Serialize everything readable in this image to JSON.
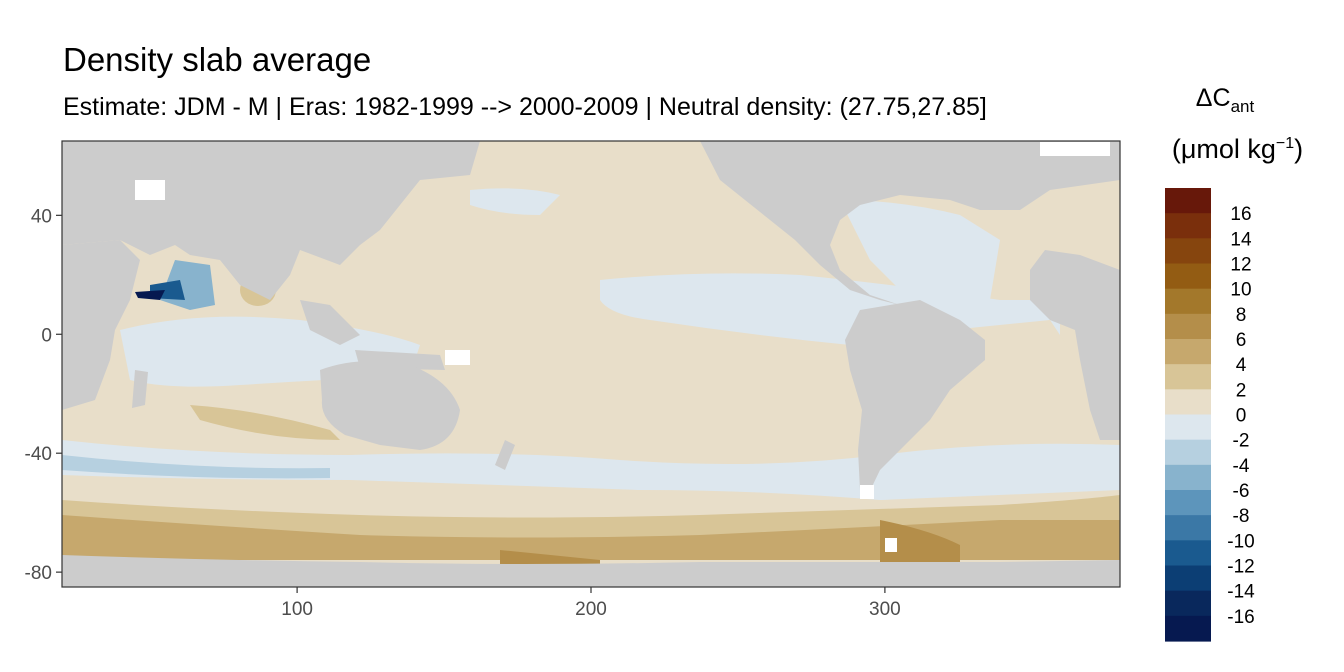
{
  "chart_data": {
    "type": "heatmap",
    "title": "Density slab average",
    "subtitle": "Estimate: JDM - M | Eras: 1982-1999 --> 2000-2009 | Neutral density: (27.75,27.85]",
    "legend": {
      "title_main": "ΔC",
      "title_sub": "ant",
      "unit_base": "(μmol kg",
      "unit_sup": "−1",
      "unit_close": ")",
      "placement": "right",
      "labels": [
        "16",
        "14",
        "12",
        "10",
        "8",
        "6",
        "4",
        "2",
        "0",
        "-2",
        "-4",
        "-6",
        "-8",
        "-10",
        "-12",
        "-14",
        "-16"
      ],
      "colors": [
        "#67180a",
        "#7a2f0c",
        "#86450e",
        "#935c13",
        "#a3782b",
        "#b48e4a",
        "#c6a86d",
        "#d8c597",
        "#e8dec9",
        "#dde7ee",
        "#b6d0e0",
        "#88b3cd",
        "#5d95bb",
        "#3b78a6",
        "#1a5a8f",
        "#0c3e74",
        "#09285c",
        "#061950"
      ]
    },
    "x_axis": {
      "ticks": [
        100,
        200,
        300
      ],
      "tick_labels": [
        "100",
        "200",
        "300"
      ],
      "range": [
        20,
        380
      ]
    },
    "y_axis": {
      "ticks": [
        40,
        0,
        -40,
        -80
      ],
      "tick_labels": [
        "40",
        "0",
        "-40",
        "-80"
      ],
      "range": [
        -85,
        65
      ]
    },
    "grid": false,
    "map_colors": {
      "land": "#cccccc",
      "missing": "#ffffff"
    }
  }
}
